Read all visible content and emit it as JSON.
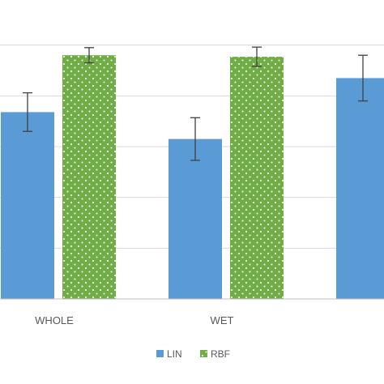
{
  "chart_data": {
    "type": "bar",
    "categories": [
      "WHOLE",
      "WET",
      ""
    ],
    "ylim": [
      0,
      6
    ],
    "grid": true,
    "legend_position": "bottom",
    "series": [
      {
        "name": "LIN",
        "color": "#5b9bd5",
        "pattern": "solid",
        "values": [
          3.68,
          3.15,
          4.35
        ],
        "errors": [
          0.38,
          0.42,
          0.45
        ]
      },
      {
        "name": "RBF",
        "color": "#70ad47",
        "pattern": "dotted",
        "values": [
          4.8,
          4.77,
          null
        ],
        "errors": [
          0.15,
          0.19,
          null
        ]
      }
    ]
  }
}
